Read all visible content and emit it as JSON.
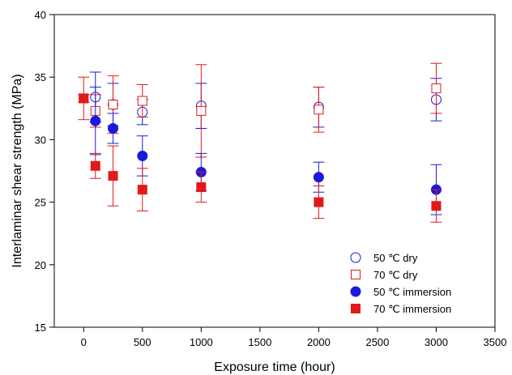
{
  "chart_data": {
    "type": "scatter",
    "title": "",
    "xlabel": "Exposure time (hour)",
    "ylabel": "Interlaminar shear strength (MPa)",
    "xlim": [
      -250,
      3500
    ],
    "ylim": [
      15,
      40
    ],
    "xticks": [
      0,
      500,
      1000,
      1500,
      2000,
      2500,
      3000,
      3500
    ],
    "yticks": [
      15,
      20,
      25,
      30,
      35,
      40
    ],
    "grid": false,
    "legend_position": "bottom-right",
    "series": [
      {
        "name": "50 ℃ dry",
        "marker": "circle",
        "filled": false,
        "color": "#1a1adb",
        "x": [
          100,
          250,
          500,
          1000,
          2000,
          3000
        ],
        "y": [
          33.4,
          32.8,
          32.2,
          32.7,
          32.6,
          33.2
        ],
        "yerr": [
          2.0,
          1.7,
          1.0,
          1.8,
          1.6,
          1.7
        ]
      },
      {
        "name": "70 ℃ dry",
        "marker": "square",
        "filled": false,
        "color": "#e01a1a",
        "x": [
          0,
          100,
          250,
          500,
          1000,
          2000,
          3000
        ],
        "y": [
          33.3,
          32.3,
          32.8,
          33.1,
          32.3,
          32.4,
          34.1
        ],
        "yerr": [
          1.7,
          1.3,
          2.3,
          1.3,
          3.7,
          1.8,
          2.0
        ]
      },
      {
        "name": "50 ℃ immersion",
        "marker": "circle",
        "filled": true,
        "color": "#1a1adb",
        "x": [
          100,
          250,
          500,
          1000,
          2000,
          3000
        ],
        "y": [
          31.5,
          30.9,
          28.7,
          27.4,
          27.0,
          26.0
        ],
        "yerr": [
          2.7,
          1.2,
          1.6,
          1.5,
          1.2,
          2.0
        ]
      },
      {
        "name": "70 ℃  immersion",
        "marker": "square",
        "filled": true,
        "color": "#e01a1a",
        "x": [
          0,
          100,
          250,
          500,
          1000,
          2000,
          3000
        ],
        "y": [
          33.3,
          27.9,
          27.1,
          26.0,
          26.2,
          25.0,
          24.7
        ],
        "yerr": [
          0.3,
          1.0,
          2.4,
          1.7,
          1.2,
          1.3,
          1.3
        ]
      }
    ]
  }
}
